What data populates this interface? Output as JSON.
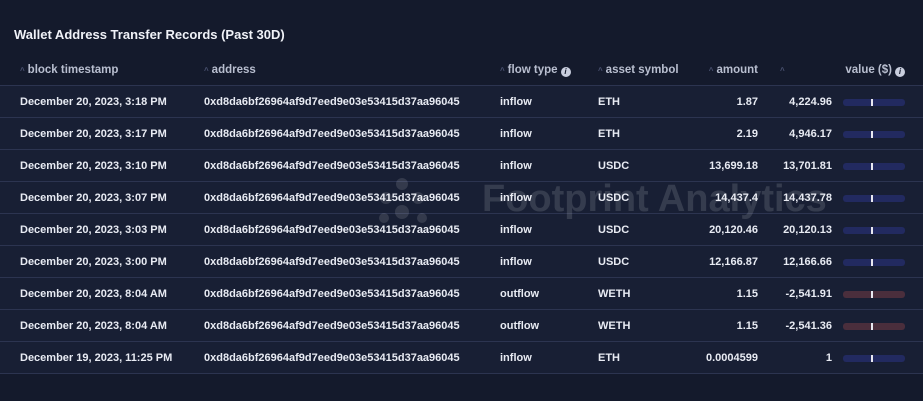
{
  "title": "Wallet Address Transfer Records (Past 30D)",
  "watermark": "Footprint Analytics",
  "columns": {
    "timestamp": "block timestamp",
    "address": "address",
    "flow_type": "flow type",
    "asset_symbol": "asset symbol",
    "amount": "amount",
    "value": "value ($)"
  },
  "colors": {
    "inflow_bar": "#222a60",
    "outflow_bar": "#4a2e3c",
    "background": "#141a2c"
  },
  "rows": [
    {
      "timestamp": "December 20, 2023, 3:18 PM",
      "address": "0xd8da6bf26964af9d7eed9e03e53415d37aa96045",
      "flow_type": "inflow",
      "asset": "ETH",
      "amount": "1.87",
      "value": "4,224.96"
    },
    {
      "timestamp": "December 20, 2023, 3:17 PM",
      "address": "0xd8da6bf26964af9d7eed9e03e53415d37aa96045",
      "flow_type": "inflow",
      "asset": "ETH",
      "amount": "2.19",
      "value": "4,946.17"
    },
    {
      "timestamp": "December 20, 2023, 3:10 PM",
      "address": "0xd8da6bf26964af9d7eed9e03e53415d37aa96045",
      "flow_type": "inflow",
      "asset": "USDC",
      "amount": "13,699.18",
      "value": "13,701.81"
    },
    {
      "timestamp": "December 20, 2023, 3:07 PM",
      "address": "0xd8da6bf26964af9d7eed9e03e53415d37aa96045",
      "flow_type": "inflow",
      "asset": "USDC",
      "amount": "14,437.4",
      "value": "14,437.78"
    },
    {
      "timestamp": "December 20, 2023, 3:03 PM",
      "address": "0xd8da6bf26964af9d7eed9e03e53415d37aa96045",
      "flow_type": "inflow",
      "asset": "USDC",
      "amount": "20,120.46",
      "value": "20,120.13"
    },
    {
      "timestamp": "December 20, 2023, 3:00 PM",
      "address": "0xd8da6bf26964af9d7eed9e03e53415d37aa96045",
      "flow_type": "inflow",
      "asset": "USDC",
      "amount": "12,166.87",
      "value": "12,166.66"
    },
    {
      "timestamp": "December 20, 2023, 8:04 AM",
      "address": "0xd8da6bf26964af9d7eed9e03e53415d37aa96045",
      "flow_type": "outflow",
      "asset": "WETH",
      "amount": "1.15",
      "value": "-2,541.91"
    },
    {
      "timestamp": "December 20, 2023, 8:04 AM",
      "address": "0xd8da6bf26964af9d7eed9e03e53415d37aa96045",
      "flow_type": "outflow",
      "asset": "WETH",
      "amount": "1.15",
      "value": "-2,541.36"
    },
    {
      "timestamp": "December 19, 2023, 11:25 PM",
      "address": "0xd8da6bf26964af9d7eed9e03e53415d37aa96045",
      "flow_type": "inflow",
      "asset": "ETH",
      "amount": "0.0004599",
      "value": "1"
    }
  ]
}
